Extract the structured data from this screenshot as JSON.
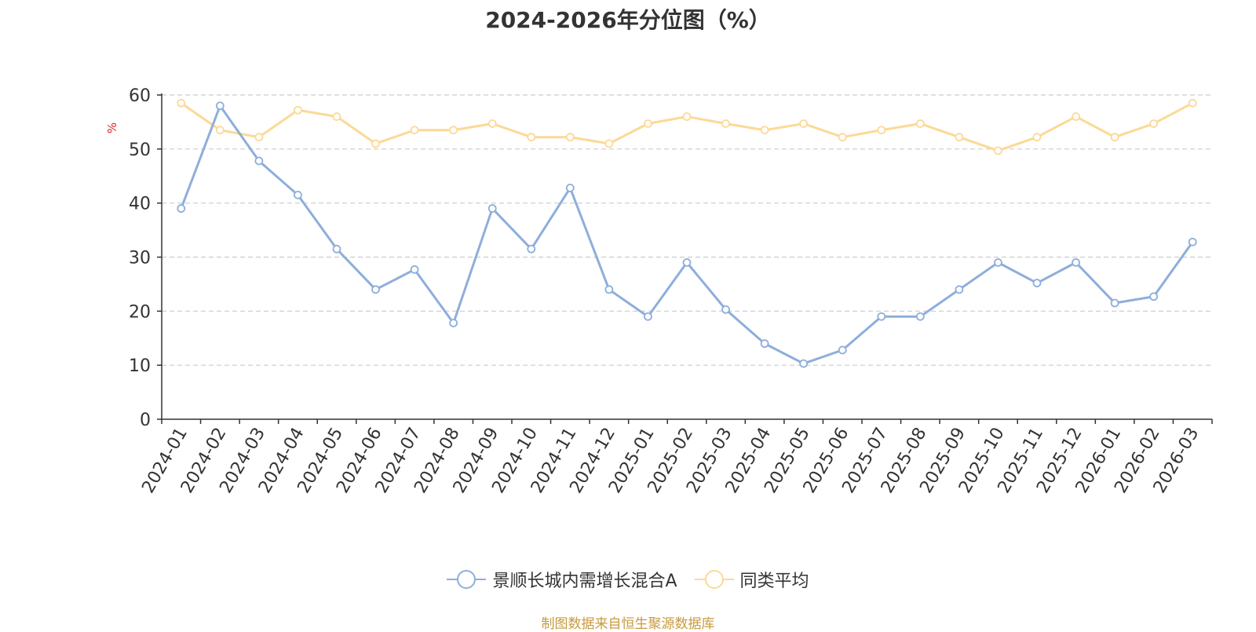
{
  "chart_data": {
    "type": "line",
    "title": "2024-2026年分位图（%）",
    "ylabel": "%",
    "ylim": [
      0,
      60
    ],
    "yticks": [
      0,
      10,
      20,
      30,
      40,
      50,
      60
    ],
    "grid": true,
    "legend_position": "bottom",
    "categories": [
      "2024-01",
      "2024-02",
      "2024-03",
      "2024-04",
      "2024-05",
      "2024-06",
      "2024-07",
      "2024-08",
      "2024-09",
      "2024-10",
      "2024-11",
      "2024-12",
      "2025-01",
      "2025-02",
      "2025-03",
      "2025-04",
      "2025-05",
      "2025-06",
      "2025-07",
      "2025-08",
      "2025-09",
      "2025-10",
      "2025-11",
      "2025-12",
      "2026-01",
      "2026-02",
      "2026-03"
    ],
    "series": [
      {
        "name": "景顺长城内需增长混合A",
        "color": "#8eaedb",
        "values": [
          39,
          58,
          47.8,
          41.5,
          31.5,
          24,
          27.7,
          17.8,
          39,
          31.5,
          42.8,
          24,
          19,
          29,
          20.3,
          14,
          10.3,
          12.8,
          19,
          19,
          24,
          29,
          25.2,
          29,
          21.5,
          22.7,
          32.8
        ]
      },
      {
        "name": "同类平均",
        "color": "#fcd996",
        "values": [
          58.5,
          53.5,
          52.2,
          57.2,
          56,
          51,
          53.5,
          53.5,
          54.7,
          52.2,
          52.2,
          51,
          54.7,
          56,
          54.7,
          53.5,
          54.7,
          52.2,
          53.5,
          54.7,
          52.2,
          49.7,
          52.2,
          56,
          52.2,
          54.7,
          58.5
        ]
      }
    ]
  },
  "source": "制图数据来自恒生聚源数据库"
}
